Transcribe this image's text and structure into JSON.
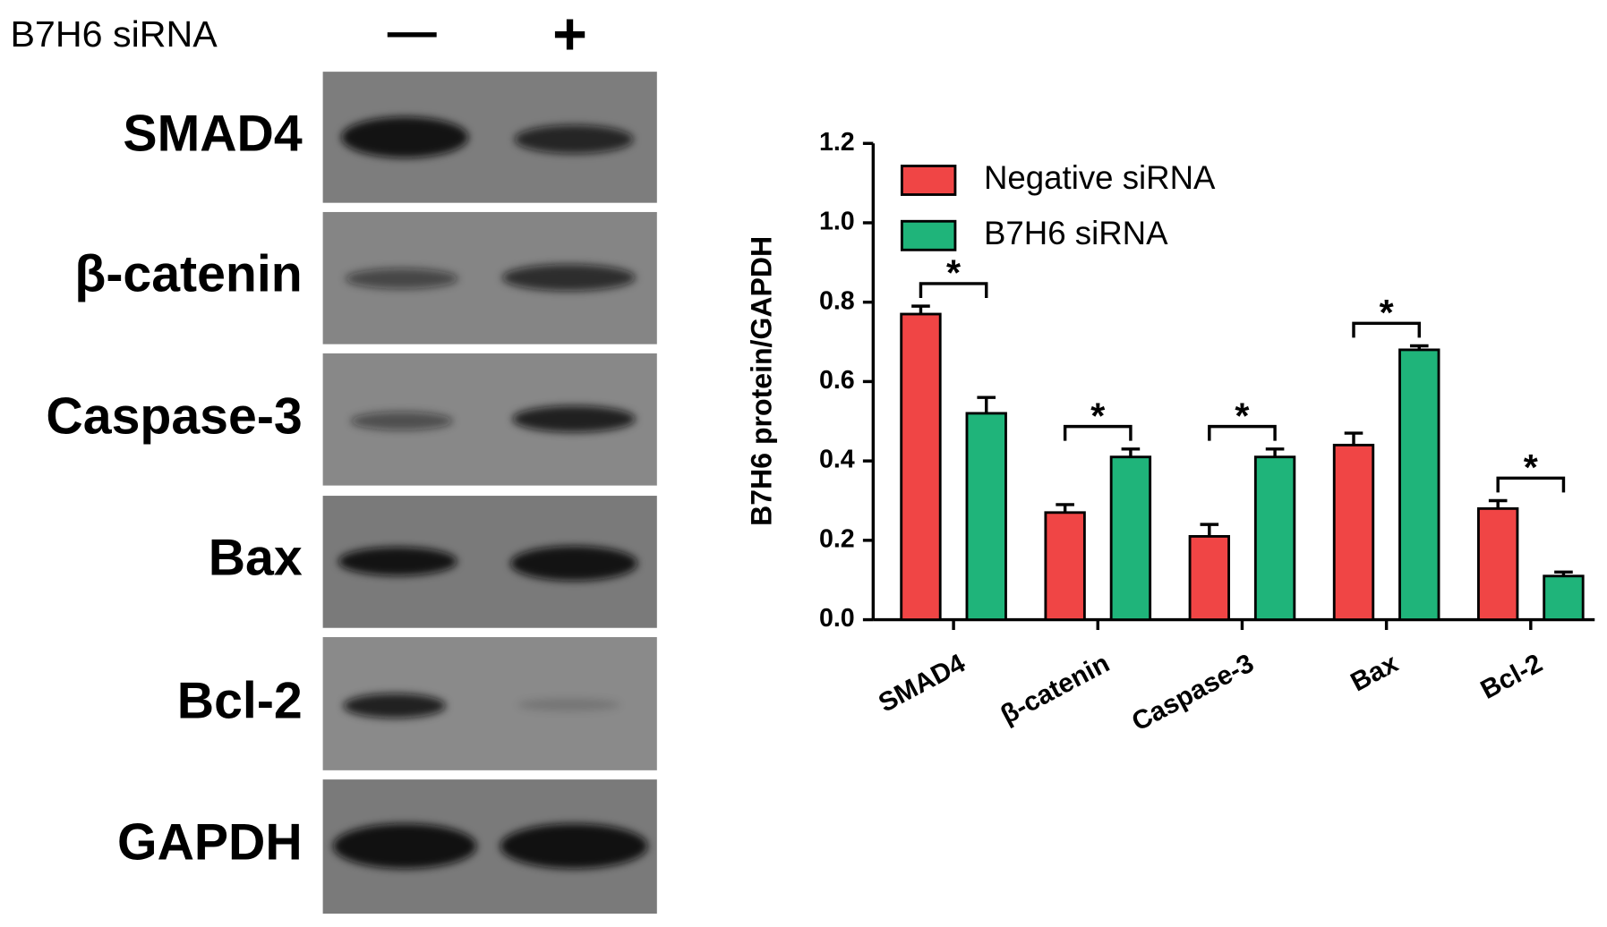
{
  "blot": {
    "header_label": "B7H6 siRNA",
    "lanes": [
      "—",
      "+"
    ],
    "rows": [
      "SMAD4",
      "β-catenin",
      "Caspase-3",
      "Bax",
      "Bcl-2",
      "GAPDH"
    ]
  },
  "chart_data": {
    "type": "bar",
    "y_label": "B7H6 protein/GAPDH",
    "categories": [
      "SMAD4",
      "β-catenin",
      "Caspase-3",
      "Bax",
      "Bcl-2"
    ],
    "series": [
      {
        "name": "Negative siRNA",
        "color": "#f04545",
        "values": [
          0.77,
          0.27,
          0.21,
          0.44,
          0.28
        ],
        "errors": [
          0.02,
          0.02,
          0.03,
          0.03,
          0.02
        ]
      },
      {
        "name": "B7H6 siRNA",
        "color": "#1fb47a",
        "values": [
          0.52,
          0.41,
          0.41,
          0.68,
          0.11
        ],
        "errors": [
          0.04,
          0.02,
          0.02,
          0.01,
          0.01
        ]
      }
    ],
    "significance": [
      "*",
      "*",
      "*",
      "*",
      "*"
    ],
    "ylim": [
      0,
      1.2
    ],
    "yticks": [
      {
        "value": 0,
        "label": "0.0"
      },
      0.2,
      0.4,
      0.6,
      0.8,
      {
        "value": 1,
        "label": "1.0"
      },
      1.2
    ],
    "legend": "top-left"
  }
}
